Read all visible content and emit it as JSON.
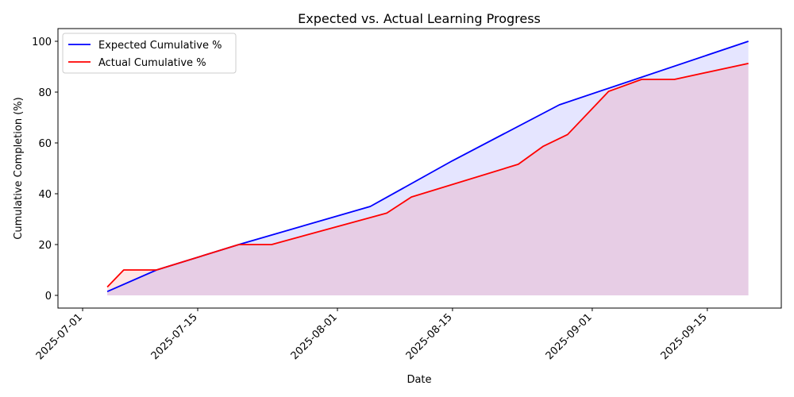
{
  "chart_data": {
    "type": "line",
    "title": "Expected vs. Actual Learning Progress",
    "xlabel": "Date",
    "ylabel": "Cumulative Completion (%)",
    "x_ticks": [
      "2025-07-01",
      "2025-07-15",
      "2025-08-01",
      "2025-08-15",
      "2025-09-01",
      "2025-09-15"
    ],
    "y_ticks": [
      0,
      20,
      40,
      60,
      80,
      100
    ],
    "xlim": [
      "2025-06-28",
      "2025-09-24"
    ],
    "ylim": [
      -5,
      105
    ],
    "legend_position": "top-left",
    "grid": false,
    "series": [
      {
        "name": "Expected Cumulative %",
        "color": "#0000ff",
        "fill": "#e6e6ff",
        "x": [
          "2025-07-04",
          "2025-07-10",
          "2025-07-20",
          "2025-08-05",
          "2025-08-15",
          "2025-08-28",
          "2025-09-20"
        ],
        "y": [
          1.5,
          10,
          20,
          35,
          53,
          75,
          100
        ]
      },
      {
        "name": "Actual Cumulative %",
        "color": "#ff0000",
        "fill": "#e6cce6",
        "x": [
          "2025-07-04",
          "2025-07-06",
          "2025-07-10",
          "2025-07-20",
          "2025-07-24",
          "2025-08-07",
          "2025-08-10",
          "2025-08-23",
          "2025-08-26",
          "2025-08-29",
          "2025-09-03",
          "2025-09-07",
          "2025-09-11",
          "2025-09-20"
        ],
        "y": [
          3.3,
          10,
          10,
          20,
          20,
          32.4,
          38.7,
          51.6,
          58.6,
          63.3,
          80.3,
          85,
          85,
          91.3
        ]
      }
    ]
  }
}
